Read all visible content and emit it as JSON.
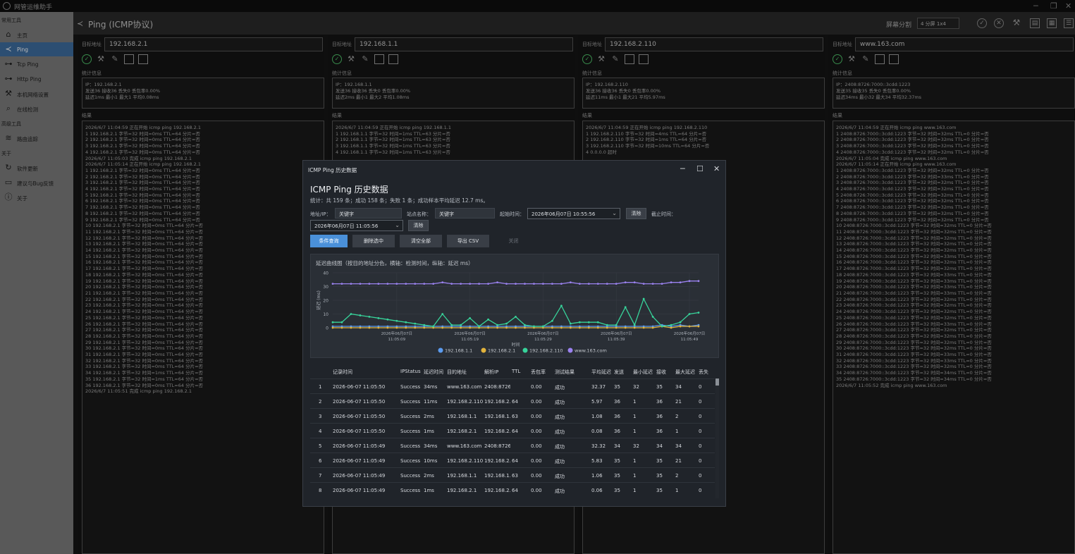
{
  "app": {
    "title": "网管运维助手"
  },
  "sidebar": {
    "group1": "常用工具",
    "items": [
      {
        "label": "主页",
        "icon": "home-icon"
      },
      {
        "label": "Ping",
        "icon": "share-icon"
      },
      {
        "label": "Tcp Ping",
        "icon": "network-icon"
      },
      {
        "label": "Http Ping",
        "icon": "network-icon"
      },
      {
        "label": "本机网络设置",
        "icon": "wrench-icon"
      },
      {
        "label": "在线检测",
        "icon": "search-icon"
      }
    ],
    "group2": "高级工具",
    "items2": [
      {
        "label": "路由追踪",
        "icon": "layers-icon"
      }
    ],
    "group3": "关于",
    "items3": [
      {
        "label": "软件更新",
        "icon": "refresh-icon"
      },
      {
        "label": "建议与Bug反馈",
        "icon": "message-icon"
      },
      {
        "label": "关于",
        "icon": "info-icon"
      }
    ]
  },
  "page": {
    "title": "Ping (ICMP协议)",
    "split_label": "屏幕分割",
    "split_value": "4 分屏 1x4"
  },
  "panels": [
    {
      "target_label": "目标地址",
      "target": "192.168.2.1",
      "stats_label": "统计信息",
      "stats": [
        "IP：192.168.2.1",
        "发送36 接收36 丢失0 丢包率0.00%",
        "延迟1ms 最小1 最大1 平均0.08ms"
      ],
      "result_label": "结果",
      "results": [
        "2026/6/7 11:04:59 正在开始 icmp ping 192.168.2.1",
        "1 192.168.2.1 字节=32 时间=0ms TTL=64 分片=否",
        "2 192.168.2.1 字节=32 时间=0ms TTL=64 分片=否",
        "3 192.168.2.1 字节=32 时间=0ms TTL=64 分片=否",
        "4 192.168.2.1 字节=32 时间=0ms TTL=64 分片=否",
        "2026/6/7 11:05:03 完成 icmp ping 192.168.2.1",
        "2026/6/7 11:05:14 正在开始 icmp ping 192.168.2.1",
        "1 192.168.2.1 字节=32 时间=0ms TTL=64 分片=否",
        "2 192.168.2.1 字节=32 时间=0ms TTL=64 分片=否",
        "3 192.168.2.1 字节=32 时间=0ms TTL=64 分片=否",
        "4 192.168.2.1 字节=32 时间=0ms TTL=64 分片=否",
        "5 192.168.2.1 字节=32 时间=0ms TTL=64 分片=否",
        "6 192.168.2.1 字节=32 时间=0ms TTL=64 分片=否",
        "7 192.168.2.1 字节=32 时间=0ms TTL=64 分片=否",
        "8 192.168.2.1 字节=32 时间=0ms TTL=64 分片=否",
        "9 192.168.2.1 字节=32 时间=0ms TTL=64 分片=否",
        "10 192.168.2.1 字节=32 时间=0ms TTL=64 分片=否",
        "11 192.168.2.1 字节=32 时间=0ms TTL=64 分片=否",
        "12 192.168.2.1 字节=32 时间=0ms TTL=64 分片=否",
        "13 192.168.2.1 字节=32 时间=0ms TTL=64 分片=否",
        "14 192.168.2.1 字节=32 时间=0ms TTL=64 分片=否",
        "15 192.168.2.1 字节=32 时间=0ms TTL=64 分片=否",
        "16 192.168.2.1 字节=32 时间=0ms TTL=64 分片=否",
        "17 192.168.2.1 字节=32 时间=0ms TTL=64 分片=否",
        "18 192.168.2.1 字节=32 时间=0ms TTL=64 分片=否",
        "19 192.168.2.1 字节=32 时间=0ms TTL=64 分片=否",
        "20 192.168.2.1 字节=32 时间=0ms TTL=64 分片=否",
        "21 192.168.2.1 字节=32 时间=0ms TTL=64 分片=否",
        "22 192.168.2.1 字节=32 时间=0ms TTL=64 分片=否",
        "23 192.168.2.1 字节=32 时间=0ms TTL=64 分片=否",
        "24 192.168.2.1 字节=32 时间=0ms TTL=64 分片=否",
        "25 192.168.2.1 字节=32 时间=0ms TTL=64 分片=否",
        "26 192.168.2.1 字节=32 时间=0ms TTL=64 分片=否",
        "27 192.168.2.1 字节=32 时间=0ms TTL=64 分片=否",
        "28 192.168.2.1 字节=32 时间=0ms TTL=64 分片=否",
        "29 192.168.2.1 字节=32 时间=0ms TTL=64 分片=否",
        "30 192.168.2.1 字节=32 时间=0ms TTL=64 分片=否",
        "31 192.168.2.1 字节=32 时间=0ms TTL=64 分片=否",
        "32 192.168.2.1 字节=32 时间=0ms TTL=64 分片=否",
        "33 192.168.2.1 字节=32 时间=0ms TTL=64 分片=否",
        "34 192.168.2.1 字节=32 时间=1ms TTL=64 分片=否",
        "35 192.168.2.1 字节=32 时间=1ms TTL=64 分片=否",
        "36 192.168.2.1 字节=32 时间=0ms TTL=64 分片=否",
        "2026/6/7 11:05:51 完成 icmp ping 192.168.2.1"
      ]
    },
    {
      "target_label": "目标地址",
      "target": "192.168.1.1",
      "stats_label": "统计信息",
      "stats": [
        "IP：192.168.1.1",
        "发送36 接收36 丢失0 丢包率0.00%",
        "延迟2ms 最小1 最大2 平均1.08ms"
      ],
      "result_label": "结果",
      "results": [
        "2026/6/7 11:04:59 正在开始 icmp ping 192.168.1.1",
        "1 192.168.1.1 字节=32 时间=1ms TTL=63 分片=否",
        "2 192.168.1.1 字节=32 时间=1ms TTL=63 分片=否",
        "3 192.168.1.1 字节=32 时间=1ms TTL=63 分片=否",
        "4 192.168.1.1 字节=32 时间=1ms TTL=63 分片=否"
      ]
    },
    {
      "target_label": "目标地址",
      "target": "192.168.2.110",
      "stats_label": "统计信息",
      "stats": [
        "IP：192.168.2.110",
        "发送36 接收36 丢失0 丢包率0.00%",
        "延迟11ms 最小1 最大21 平均5.97ms"
      ],
      "result_label": "结果",
      "results": [
        "2026/6/7 11:04:59 正在开始 icmp ping 192.168.2.110",
        "1 192.168.2.110 字节=32 时间=4ms TTL=64 分片=否",
        "2 192.168.2.110 字节=32 时间=1ms TTL=64 分片=否",
        "3 192.168.2.110 字节=32 时间=10ms TTL=64 分片=否",
        "4 0.0.0.0 超时"
      ]
    },
    {
      "target_label": "目标地址",
      "target": "www.163.com",
      "stats_label": "统计信息",
      "stats": [
        "IP：2408:8726:7000::3cdd:1223",
        "发送35 接收35 丢失0 丢包率0.00%",
        "延迟34ms 最小32 最大34 平均32.37ms"
      ],
      "result_label": "结果",
      "results": [
        "2026/6/7 11:04:59 正在开始 icmp ping www.163.com",
        "1 2408:8726:7000::3cdd:1223 字节=32 时间=32ms TTL=0 分片=否",
        "2 2408:8726:7000::3cdd:1223 字节=32 时间=32ms TTL=0 分片=否",
        "3 2408:8726:7000::3cdd:1223 字节=32 时间=32ms TTL=0 分片=否",
        "4 2408:8726:7000::3cdd:1223 字节=32 时间=32ms TTL=0 分片=否",
        "2026/6/7 11:05:04 完成 icmp ping www.163.com",
        "2026/6/7 11:05:14 正在开始 icmp ping www.163.com",
        "1 2408:8726:7000::3cdd:1223 字节=32 时间=32ms TTL=0 分片=否",
        "2 2408:8726:7000::3cdd:1223 字节=32 时间=33ms TTL=0 分片=否",
        "3 2408:8726:7000::3cdd:1223 字节=32 时间=32ms TTL=0 分片=否",
        "4 2408:8726:7000::3cdd:1223 字节=32 时间=32ms TTL=0 分片=否",
        "5 2408:8726:7000::3cdd:1223 字节=32 时间=32ms TTL=0 分片=否",
        "6 2408:8726:7000::3cdd:1223 字节=32 时间=32ms TTL=0 分片=否",
        "7 2408:8726:7000::3cdd:1223 字节=32 时间=32ms TTL=0 分片=否",
        "8 2408:8726:7000::3cdd:1223 字节=32 时间=32ms TTL=0 分片=否",
        "9 2408:8726:7000::3cdd:1223 字节=32 时间=32ms TTL=0 分片=否",
        "10 2408:8726:7000::3cdd:1223 字节=32 时间=32ms TTL=0 分片=否",
        "11 2408:8726:7000::3cdd:1223 字节=32 时间=32ms TTL=0 分片=否",
        "12 2408:8726:7000::3cdd:1223 字节=32 时间=32ms TTL=0 分片=否",
        "13 2408:8726:7000::3cdd:1223 字节=32 时间=32ms TTL=0 分片=否",
        "14 2408:8726:7000::3cdd:1223 字节=32 时间=32ms TTL=0 分片=否",
        "15 2408:8726:7000::3cdd:1223 字节=32 时间=33ms TTL=0 分片=否",
        "16 2408:8726:7000::3cdd:1223 字节=32 时间=32ms TTL=0 分片=否",
        "17 2408:8726:7000::3cdd:1223 字节=32 时间=32ms TTL=0 分片=否",
        "18 2408:8726:7000::3cdd:1223 字节=32 时间=33ms TTL=0 分片=否",
        "19 2408:8726:7000::3cdd:1223 字节=32 时间=33ms TTL=0 分片=否",
        "20 2408:8726:7000::3cdd:1223 字节=32 时间=33ms TTL=0 分片=否",
        "21 2408:8726:7000::3cdd:1223 字节=32 时间=33ms TTL=0 分片=否",
        "22 2408:8726:7000::3cdd:1223 字节=32 时间=32ms TTL=0 分片=否",
        "23 2408:8726:7000::3cdd:1223 字节=32 时间=32ms TTL=0 分片=否",
        "24 2408:8726:7000::3cdd:1223 字节=32 时间=32ms TTL=0 分片=否",
        "25 2408:8726:7000::3cdd:1223 字节=32 时间=32ms TTL=0 分片=否",
        "26 2408:8726:7000::3cdd:1223 字节=32 时间=33ms TTL=0 分片=否",
        "27 2408:8726:7000::3cdd:1223 字节=32 时间=32ms TTL=0 分片=否",
        "28 2408:8726:7000::3cdd:1223 字节=32 时间=32ms TTL=0 分片=否",
        "29 2408:8726:7000::3cdd:1223 字节=32 时间=32ms TTL=0 分片=否",
        "30 2408:8726:7000::3cdd:1223 字节=32 时间=32ms TTL=0 分片=否",
        "31 2408:8726:7000::3cdd:1223 字节=32 时间=33ms TTL=0 分片=否",
        "32 2408:8726:7000::3cdd:1223 字节=32 时间=33ms TTL=0 分片=否",
        "33 2408:8726:7000::3cdd:1223 字节=32 时间=32ms TTL=0 分片=否",
        "34 2408:8726:7000::3cdd:1223 字节=32 时间=34ms TTL=0 分片=否",
        "35 2408:8726:7000::3cdd:1223 字节=32 时间=34ms TTL=0 分片=否",
        "2026/6/7 11:05:52 完成 icmp ping www.163.com"
      ]
    }
  ],
  "dialog": {
    "title": "ICMP Ping 历史数据",
    "heading": "ICMP Ping 历史数据",
    "summary": "统计：共 159 条；成功 158 条；失败 1 条；成功样本平均延迟 12.7 ms。",
    "filters": {
      "addr_label": "地址/IP：",
      "addr_placeholder": "关键字",
      "site_label": "站点名称：",
      "site_placeholder": "关键字",
      "start_label": "起始时间：",
      "start_value": "2026年06月07日 10:55:56",
      "clear1": "清除",
      "end_label": "截止时间：",
      "end_value": "2026年06月07日 11:05:56",
      "clear2": "清除"
    },
    "buttons": {
      "query": "条件查询",
      "delete_sel": "删除选中",
      "clear_all": "清空全部",
      "export": "导出 CSV",
      "close": "关闭"
    },
    "colors": {
      "s1": "#5b9bef",
      "s2": "#e2b33c",
      "s3": "#37d39a",
      "s4": "#9b82f0"
    },
    "grid": {
      "headers": [
        "记录时间",
        "IPStatus",
        "延迟时间",
        "目的地址",
        "解析IP",
        "TTL",
        "丢包率",
        "测试结果",
        "平均延迟",
        "发送",
        "最小延迟",
        "接收",
        "最大延迟",
        "丢失"
      ],
      "rows": [
        [
          "1",
          "2026-06-07 11:05:50",
          "Success",
          "34ms",
          "www.163.com",
          "2408:8726",
          "",
          "0.00",
          "成功",
          "32.37",
          "35",
          "32",
          "35",
          "34",
          "0"
        ],
        [
          "2",
          "2026-06-07 11:05:50",
          "Success",
          "11ms",
          "192.168.2.110",
          "192.168.2.110",
          "64",
          "0.00",
          "成功",
          "5.97",
          "36",
          "1",
          "36",
          "21",
          "0"
        ],
        [
          "3",
          "2026-06-07 11:05:50",
          "Success",
          "2ms",
          "192.168.1.1",
          "192.168.1.1",
          "63",
          "0.00",
          "成功",
          "1.08",
          "36",
          "1",
          "36",
          "2",
          "0"
        ],
        [
          "4",
          "2026-06-07 11:05:50",
          "Success",
          "1ms",
          "192.168.2.1",
          "192.168.2.1",
          "64",
          "0.00",
          "成功",
          "0.08",
          "36",
          "1",
          "36",
          "1",
          "0"
        ],
        [
          "5",
          "2026-06-07 11:05:49",
          "Success",
          "34ms",
          "www.163.com",
          "2408:8726",
          "",
          "0.00",
          "成功",
          "32.32",
          "34",
          "32",
          "34",
          "34",
          "0"
        ],
        [
          "6",
          "2026-06-07 11:05:49",
          "Success",
          "10ms",
          "192.168.2.110",
          "192.168.2.110",
          "64",
          "0.00",
          "成功",
          "5.83",
          "35",
          "1",
          "35",
          "21",
          "0"
        ],
        [
          "7",
          "2026-06-07 11:05:49",
          "Success",
          "2ms",
          "192.168.1.1",
          "192.168.1.1",
          "63",
          "0.00",
          "成功",
          "1.06",
          "35",
          "1",
          "35",
          "2",
          "0"
        ],
        [
          "8",
          "2026-06-07 11:05:49",
          "Success",
          "1ms",
          "192.168.2.1",
          "192.168.2.1",
          "64",
          "0.00",
          "成功",
          "0.06",
          "35",
          "1",
          "35",
          "1",
          "0"
        ]
      ]
    }
  },
  "chart_data": {
    "type": "line",
    "title": "延迟曲线图（按目的地址分色，横轴：检测时间，纵轴：延迟 ms）",
    "xlabel": "时间",
    "ylabel": "延迟 (ms)",
    "ylim": [
      0,
      40
    ],
    "yticks": [
      0,
      10,
      20,
      30,
      40
    ],
    "x_ticks": [
      {
        "idx": 7,
        "l1": "2026年06月07日",
        "l2": "11:05:09"
      },
      {
        "idx": 15,
        "l1": "2026年06月07日",
        "l2": "11:05:19"
      },
      {
        "idx": 23,
        "l1": "2026年06月07日",
        "l2": "11:05:29"
      },
      {
        "idx": 31,
        "l1": "2026年06月07日",
        "l2": "11:05:39"
      },
      {
        "idx": 39,
        "l1": "2026年06月07日",
        "l2": "11:05:49"
      }
    ],
    "legend_position": "bottom",
    "n_points": 41,
    "series": [
      {
        "name": "192.168.1.1",
        "color": "#5b9bef",
        "values": [
          1,
          1,
          1,
          1,
          1,
          1,
          1,
          1,
          1,
          1,
          1,
          1,
          1,
          1,
          1,
          1,
          1,
          1,
          1,
          1,
          1,
          1,
          1,
          1,
          1,
          1,
          1,
          1,
          1,
          1,
          1,
          1,
          1,
          1,
          1,
          1,
          2,
          1,
          2,
          1,
          2
        ]
      },
      {
        "name": "192.168.2.1",
        "color": "#e2b33c",
        "values": [
          0,
          0,
          0,
          0,
          0,
          0,
          0,
          0,
          0,
          0,
          0,
          0,
          0,
          0,
          0,
          0,
          0,
          0,
          0,
          0,
          0,
          0,
          0,
          0,
          0,
          0,
          0,
          0,
          0,
          0,
          0,
          0,
          0,
          0,
          0,
          0,
          1,
          0,
          1,
          1,
          1
        ]
      },
      {
        "name": "192.168.2.110",
        "color": "#37d39a",
        "values": [
          4,
          4,
          10,
          9,
          8,
          7,
          6,
          5,
          4,
          3,
          2,
          1,
          10,
          2,
          2,
          7,
          1,
          6,
          2,
          3,
          8,
          2,
          1,
          1,
          5,
          16,
          3,
          4,
          4,
          4,
          2,
          2,
          15,
          2,
          21,
          8,
          1,
          2,
          4,
          10,
          11
        ]
      },
      {
        "name": "www.163.com",
        "color": "#9b82f0",
        "values": [
          32,
          32,
          32,
          32,
          32,
          32,
          32,
          32,
          32,
          32,
          32,
          32,
          33,
          32,
          32,
          32,
          32,
          32,
          33,
          32,
          32,
          32,
          32,
          32,
          32,
          32,
          33,
          32,
          32,
          32,
          32,
          32,
          33,
          33,
          32,
          32,
          32,
          33,
          33,
          34,
          34
        ]
      }
    ]
  }
}
